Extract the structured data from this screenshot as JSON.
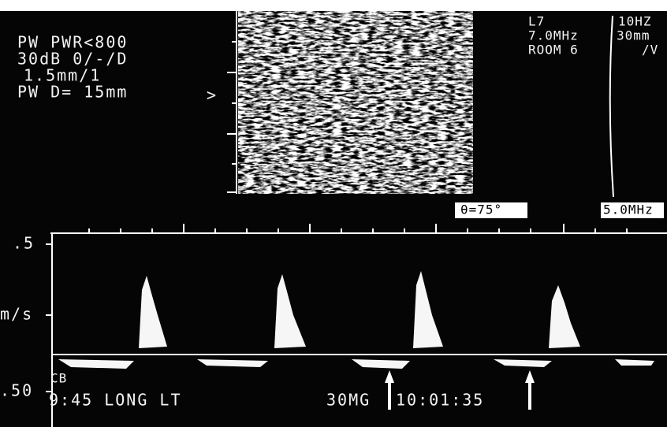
{
  "settings_panel": {
    "lines": [
      "PW PWR<800",
      "30dB 0/-/D",
      "1.5mm/1",
      "PW D= 15mm"
    ],
    "marker": ">"
  },
  "probe_panel": {
    "lines": [
      "L7",
      "7.0MHz",
      "ROOM 6"
    ],
    "right_lines": [
      "10HZ",
      "30mm",
      "/V"
    ]
  },
  "angle_box": "θ=75°",
  "freq_box": "5.0MHz",
  "doppler": {
    "scale_top": ".5",
    "unit": "m/s",
    "scale_bottom": ".50"
  },
  "footer": {
    "tag": "CB",
    "label": "9:45 LONG  LT",
    "code": "30MG",
    "time": "10:01:35"
  }
}
